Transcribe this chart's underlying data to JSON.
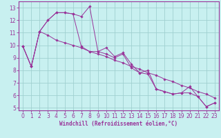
{
  "xlabel": "Windchill (Refroidissement éolien,°C)",
  "bg_color": "#c8f0f0",
  "grid_color": "#a0d0d0",
  "line_color": "#993399",
  "xlim": [
    -0.5,
    23.5
  ],
  "ylim": [
    4.8,
    13.5
  ],
  "yticks": [
    5,
    6,
    7,
    8,
    9,
    10,
    11,
    12,
    13
  ],
  "xticks": [
    0,
    1,
    2,
    3,
    4,
    5,
    6,
    7,
    8,
    9,
    10,
    11,
    12,
    13,
    14,
    15,
    16,
    17,
    18,
    19,
    20,
    21,
    22,
    23
  ],
  "series1_x": [
    0,
    1,
    2,
    3,
    4,
    5,
    6,
    7,
    8,
    9,
    10,
    11,
    12,
    13,
    14,
    15,
    16,
    17,
    18,
    19,
    20,
    21,
    22,
    23
  ],
  "series1_y": [
    9.9,
    8.3,
    11.1,
    12.0,
    12.6,
    12.6,
    12.5,
    12.3,
    13.1,
    9.5,
    9.8,
    9.1,
    9.4,
    8.5,
    7.8,
    8.0,
    6.5,
    6.3,
    6.1,
    6.2,
    6.2,
    5.9,
    5.1,
    5.4
  ],
  "series2_x": [
    0,
    1,
    2,
    3,
    4,
    5,
    6,
    7,
    8,
    9,
    10,
    11,
    12,
    13,
    14,
    15,
    16,
    17,
    18,
    19,
    20,
    21,
    22,
    23
  ],
  "series2_y": [
    9.9,
    8.3,
    11.1,
    12.0,
    12.6,
    12.6,
    12.5,
    9.9,
    9.5,
    9.5,
    9.3,
    9.0,
    9.3,
    8.2,
    7.8,
    7.7,
    6.5,
    6.3,
    6.1,
    6.2,
    6.7,
    5.9,
    5.1,
    5.4
  ],
  "series3_x": [
    0,
    1,
    2,
    3,
    4,
    5,
    6,
    7,
    8,
    9,
    10,
    11,
    12,
    13,
    14,
    15,
    16,
    17,
    18,
    19,
    20,
    21,
    22,
    23
  ],
  "series3_y": [
    9.9,
    8.3,
    11.1,
    10.8,
    10.4,
    10.2,
    10.0,
    9.8,
    9.5,
    9.3,
    9.1,
    8.8,
    8.6,
    8.3,
    8.1,
    7.8,
    7.6,
    7.3,
    7.1,
    6.8,
    6.6,
    6.3,
    6.1,
    5.8
  ],
  "tick_fontsize": 5.5,
  "xlabel_fontsize": 5.5
}
